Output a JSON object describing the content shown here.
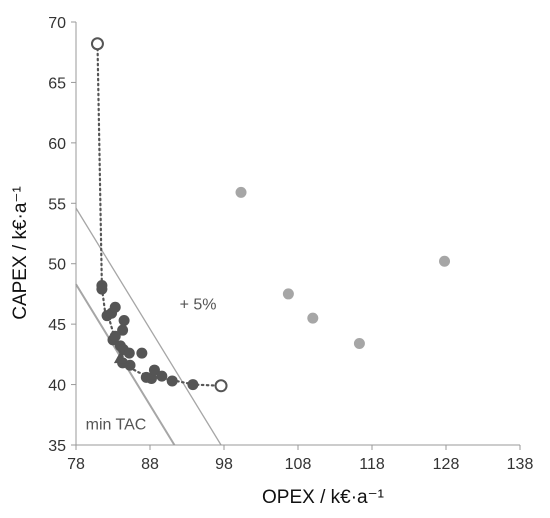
{
  "chart_data": {
    "type": "scatter",
    "xlabel": "OPEX / k€·a⁻¹",
    "ylabel": "CAPEX / k€·a⁻¹",
    "xlim": [
      78,
      138
    ],
    "ylim": [
      35,
      70
    ],
    "xticks": [
      78,
      88,
      98,
      108,
      118,
      128,
      138
    ],
    "yticks": [
      35,
      40,
      45,
      50,
      55,
      60,
      65,
      70
    ],
    "grid": false,
    "colors": {
      "dark_points": "#555555",
      "light_points": "#a6a6a6",
      "iso_lines": "#a6a6a6",
      "pareto_front": "#555555",
      "axes": "#999999"
    },
    "pareto_front": [
      [
        80.9,
        68.2
      ],
      [
        81.5,
        48.0
      ],
      [
        82.0,
        45.7
      ],
      [
        82.6,
        45.2
      ],
      [
        83.2,
        43.9
      ],
      [
        83.8,
        43.2
      ],
      [
        84.5,
        42.0
      ],
      [
        85.0,
        41.5
      ],
      [
        86.5,
        41.0
      ],
      [
        88.0,
        40.7
      ],
      [
        89.5,
        40.5
      ],
      [
        91.5,
        40.3
      ],
      [
        94.0,
        40.0
      ],
      [
        97.6,
        39.9
      ]
    ],
    "series": [
      {
        "marker": "open-circle",
        "points": [
          [
            80.9,
            68.2
          ],
          [
            97.6,
            39.9
          ]
        ]
      },
      {
        "marker": "filled-circle",
        "color": "#555555",
        "points": [
          [
            81.5,
            48.2
          ],
          [
            81.5,
            47.9
          ],
          [
            82.2,
            45.7
          ],
          [
            82.8,
            45.9
          ],
          [
            83.3,
            46.4
          ],
          [
            84.5,
            45.3
          ],
          [
            84.3,
            44.5
          ],
          [
            83.0,
            43.7
          ],
          [
            83.3,
            44.0
          ],
          [
            84.0,
            43.2
          ],
          [
            84.4,
            42.9
          ],
          [
            85.2,
            42.6
          ],
          [
            85.3,
            41.6
          ],
          [
            84.3,
            41.8
          ],
          [
            86.9,
            42.6
          ],
          [
            87.5,
            40.6
          ],
          [
            88.2,
            40.5
          ],
          [
            88.6,
            41.2
          ],
          [
            89.6,
            40.7
          ],
          [
            91.0,
            40.3
          ],
          [
            93.8,
            40.0
          ]
        ]
      },
      {
        "marker": "filled-triangle",
        "color": "#555555",
        "points": [
          [
            84.0,
            42.2
          ]
        ]
      },
      {
        "marker": "filled-circle",
        "color": "#a6a6a6",
        "points": [
          [
            100.3,
            55.9
          ],
          [
            106.7,
            47.5
          ],
          [
            110.0,
            45.5
          ],
          [
            116.3,
            43.4
          ],
          [
            127.8,
            50.2
          ]
        ]
      }
    ],
    "iso_lines": [
      {
        "label": "min TAC",
        "points": [
          [
            78.0,
            48.3
          ],
          [
            91.3,
            35.0
          ]
        ]
      },
      {
        "label": "+ 5%",
        "points": [
          [
            78.0,
            54.6
          ],
          [
            97.6,
            35.0
          ]
        ]
      }
    ],
    "annotations": [
      {
        "text": "+ 5%",
        "x": 92.0,
        "y": 46.2
      },
      {
        "text": "min TAC",
        "x": 79.3,
        "y": 36.3
      }
    ]
  }
}
